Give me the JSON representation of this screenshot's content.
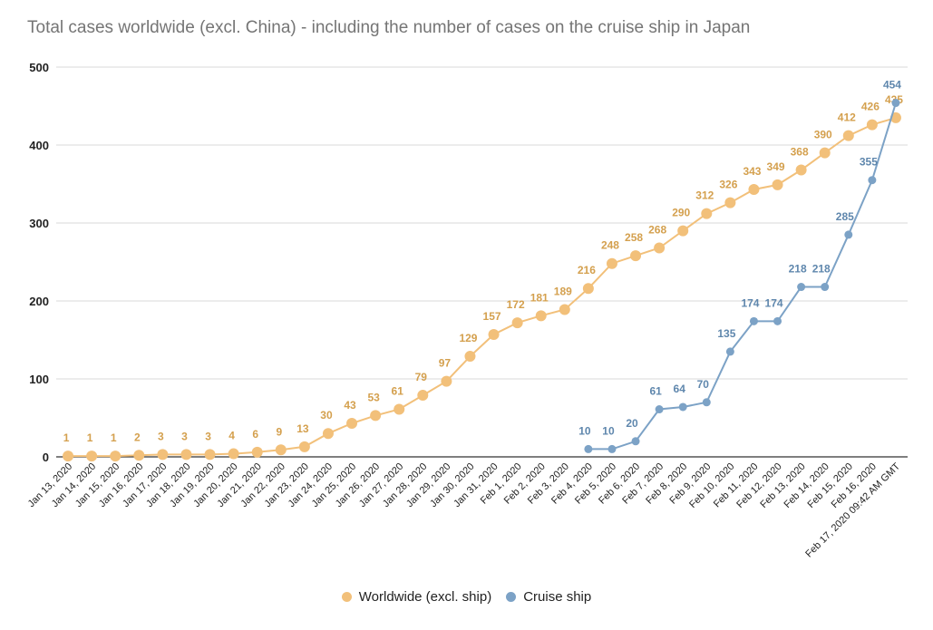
{
  "chart_data": {
    "type": "line",
    "title": "Total cases worldwide (excl. China) - including the number of cases on the cruise ship in Japan",
    "xlabel": "",
    "ylabel": "",
    "ylim": [
      0,
      500
    ],
    "yticks": [
      "0",
      "100",
      "200",
      "300",
      "400",
      "500"
    ],
    "grid": true,
    "legend_position": "bottom",
    "categories": [
      "Jan 13, 2020",
      "Jan 14, 2020",
      "Jan 15, 2020",
      "Jan 16, 2020",
      "Jan 17, 2020",
      "Jan 18, 2020",
      "Jan 19, 2020",
      "Jan 20, 2020",
      "Jan 21, 2020",
      "Jan 22, 2020",
      "Jan 23, 2020",
      "Jan 24, 2020",
      "Jan 25, 2020",
      "Jan 26, 2020",
      "Jan 27, 2020",
      "Jan 28, 2020",
      "Jan 29, 2020",
      "Jan 30, 2020",
      "Jan 31, 2020",
      "Feb 1, 2020",
      "Feb 2, 2020",
      "Feb 3, 2020",
      "Feb 4, 2020",
      "Feb 5, 2020",
      "Feb 6, 2020",
      "Feb 7, 2020",
      "Feb 8, 2020",
      "Feb 9, 2020",
      "Feb 10, 2020",
      "Feb 11, 2020",
      "Feb 12, 2020",
      "Feb 13, 2020",
      "Feb 14, 2020",
      "Feb 15, 2020",
      "Feb 16, 2020",
      "Feb 17, 2020 09:42 AM GMT"
    ],
    "series": [
      {
        "name": "Worldwide (excl. ship)",
        "color": "#f2c07a",
        "label_color": "#d4a04e",
        "values": [
          1,
          1,
          1,
          2,
          3,
          3,
          3,
          4,
          6,
          9,
          13,
          30,
          43,
          53,
          61,
          79,
          97,
          129,
          157,
          172,
          181,
          189,
          216,
          248,
          258,
          268,
          290,
          312,
          326,
          343,
          349,
          368,
          390,
          412,
          426,
          435
        ]
      },
      {
        "name": "Cruise ship",
        "color": "#7ca2c6",
        "label_color": "#5f87ad",
        "values": [
          null,
          null,
          null,
          null,
          null,
          null,
          null,
          null,
          null,
          null,
          null,
          null,
          null,
          null,
          null,
          null,
          null,
          null,
          null,
          null,
          null,
          null,
          10,
          10,
          20,
          61,
          64,
          70,
          135,
          174,
          174,
          218,
          218,
          285,
          355,
          454
        ]
      }
    ]
  }
}
